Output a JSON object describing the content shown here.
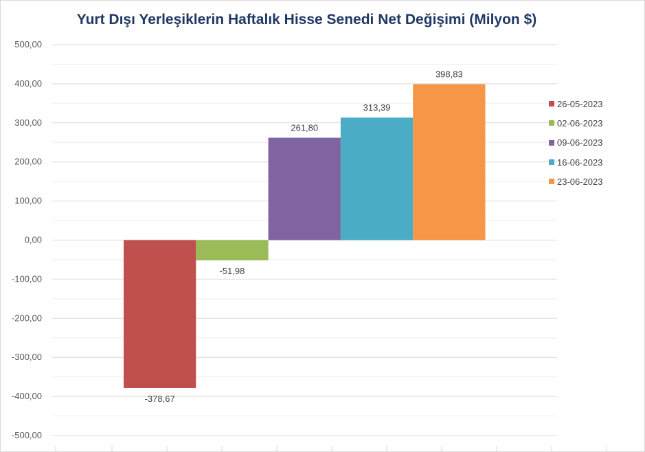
{
  "chart_data": {
    "type": "bar",
    "title": "Yurt Dışı Yerleşiklerin Haftalık Hisse Senedi Net Değişimi (Milyon $)",
    "xlabel": "",
    "ylabel": "",
    "ylim": [
      -500,
      500
    ],
    "y_ticks": [
      "500,00",
      "400,00",
      "300,00",
      "200,00",
      "100,00",
      "0,00",
      "-100,00",
      "-200,00",
      "-300,00",
      "-400,00",
      "-500,00"
    ],
    "grid": true,
    "legend_position": "right",
    "series": [
      {
        "name": "26-05-2023",
        "value": -378.67,
        "label": "-378,67",
        "color": "#c0504d"
      },
      {
        "name": "02-06-2023",
        "value": -51.98,
        "label": "-51,98",
        "color": "#9bbb59"
      },
      {
        "name": "09-06-2023",
        "value": 261.8,
        "label": "261,80",
        "color": "#8064a2"
      },
      {
        "name": "16-06-2023",
        "value": 313.39,
        "label": "313,39",
        "color": "#4bacc6"
      },
      {
        "name": "23-06-2023",
        "value": 398.83,
        "label": "398,83",
        "color": "#f79646"
      }
    ]
  }
}
